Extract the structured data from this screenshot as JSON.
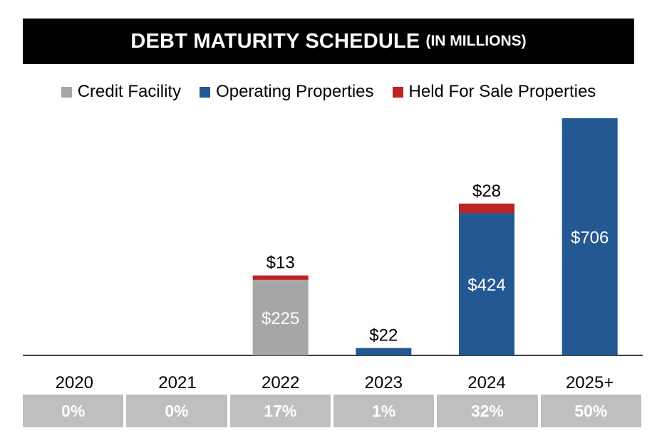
{
  "title": {
    "main": "DEBT MATURITY SCHEDULE",
    "sub": "(IN MILLIONS)"
  },
  "colors": {
    "credit": "#a6a6a6",
    "operating": "#235893",
    "held": "#c0221f"
  },
  "chart_data": {
    "type": "bar",
    "stacked": true,
    "categories": [
      "2020",
      "2021",
      "2022",
      "2023",
      "2024",
      "2025+"
    ],
    "series": [
      {
        "name": "Credit Facility",
        "color": "#a6a6a6",
        "values": [
          0,
          0,
          225,
          0,
          0,
          0
        ],
        "labels": [
          "",
          "",
          "$225",
          "",
          "",
          ""
        ]
      },
      {
        "name": "Operating Properties",
        "color": "#235893",
        "values": [
          0,
          0,
          0,
          22,
          424,
          706
        ],
        "labels": [
          "",
          "",
          "",
          "$22",
          "$424",
          "$706"
        ]
      },
      {
        "name": "Held For Sale Properties",
        "color": "#c0221f",
        "values": [
          0,
          0,
          13,
          0,
          28,
          0
        ],
        "labels": [
          "",
          "",
          "$13",
          "",
          "$28",
          ""
        ]
      }
    ],
    "percentages": [
      "0%",
      "0%",
      "17%",
      "1%",
      "32%",
      "50%"
    ],
    "ylim": [
      0,
      706
    ],
    "legend_position": "top",
    "grid": false
  }
}
